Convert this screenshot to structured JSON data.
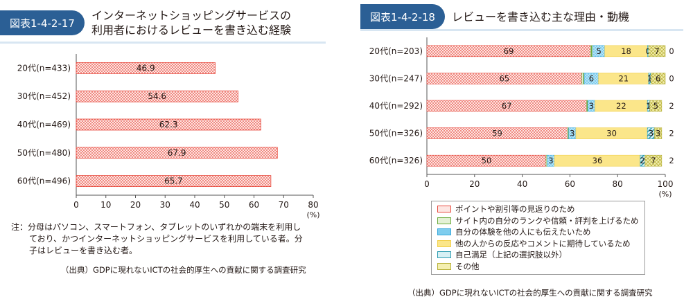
{
  "left": {
    "badge": "図表1-4-2-17",
    "title_line1": "インターネットショッピングサービスの",
    "title_line2": "利用者におけるレビューを書き込む経験",
    "note_line1": "注：分母はパソコン、スマートフォン、タブレットのいずれかの端末を利用し",
    "note_line2": "ており、かつインターネットショッピングサービスを利用している者。分",
    "note_line3": "子はレビューを書き込む者。",
    "source": "（出典）GDPに現れないICTの社会的厚生への貢献に関する調査研究"
  },
  "right": {
    "badge": "図表1-4-2-18",
    "title": "レビューを書き込む主な理由・動機",
    "source": "（出典）GDPに現れないICTの社会的厚生への貢献に関する調査研究"
  },
  "colors": {
    "badge": "#2b5f95",
    "red": "#e8483c",
    "green": "#6aaa3a",
    "blue": "#35a8dc",
    "yellow": "#f2d04c",
    "teal": "#2a9bb0",
    "olive": "#b8b13a"
  },
  "chart_data": [
    {
      "type": "bar",
      "orientation": "horizontal",
      "categories": [
        "20代(n=433)",
        "30代(n=452)",
        "40代(n=469)",
        "50代(n=480)",
        "60代(n=496)"
      ],
      "values": [
        46.9,
        54.6,
        62.3,
        67.9,
        65.7
      ],
      "value_labels": [
        "46.9",
        "54.6",
        "62.3",
        "67.9",
        "65.7"
      ],
      "xlim": [
        0,
        80
      ],
      "xticks": [
        "0",
        "10",
        "20",
        "30",
        "40",
        "50",
        "60",
        "70",
        "80"
      ],
      "unit": "(%)",
      "grid": false
    },
    {
      "type": "bar",
      "orientation": "horizontal",
      "stacked": true,
      "categories": [
        "20代(n=203)",
        "30代(n=247)",
        "40代(n=292)",
        "50代(n=326)",
        "60代(n=326)"
      ],
      "series": [
        {
          "name": "ポイントや割引等の見返りのため",
          "values": [
            69,
            65,
            67,
            59,
            50
          ],
          "labels": [
            "69",
            "65",
            "67",
            "59",
            "50"
          ]
        },
        {
          "name": "サイト内の自分のランクや信頼・評判を上げるため",
          "values": [
            1,
            1,
            0.5,
            0.5,
            0.5
          ],
          "labels": [
            "",
            "",
            "",
            "",
            ""
          ]
        },
        {
          "name": "自分の体験を他の人にも伝えたいため",
          "values": [
            5,
            6,
            3,
            3,
            3
          ],
          "labels": [
            "5",
            "6",
            "3",
            "3",
            "3"
          ]
        },
        {
          "name": "他の人からの反応やコメントに期待しているため",
          "values": [
            18,
            21,
            22,
            30,
            36
          ],
          "labels": [
            "18",
            "21",
            "22",
            "30",
            "36"
          ]
        },
        {
          "name": "自己満足（上記の選択肢以外）",
          "values": [
            0.5,
            1,
            1,
            3,
            2
          ],
          "labels": [
            "0",
            "1",
            "1",
            "3",
            "2"
          ]
        },
        {
          "name": "その他",
          "values": [
            7,
            6,
            5,
            3,
            7
          ],
          "labels": [
            "7",
            "6",
            "5",
            "3",
            "7"
          ]
        }
      ],
      "right_labels": [
        "0",
        "0",
        "2",
        "2",
        "2"
      ],
      "xlim": [
        0,
        100
      ],
      "xticks": [
        "0",
        "20",
        "40",
        "60",
        "80",
        "100"
      ],
      "unit": "(%)",
      "legend_position": "bottom-right",
      "grid": false
    }
  ]
}
